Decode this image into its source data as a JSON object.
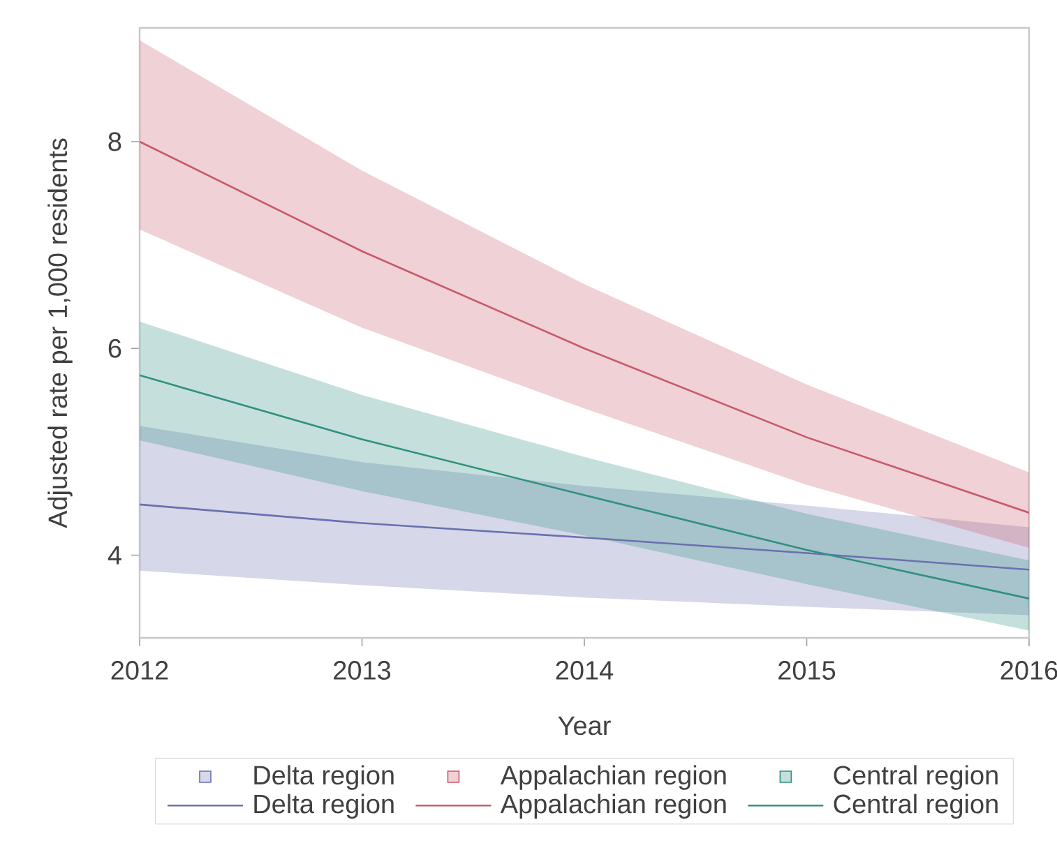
{
  "chart_data": {
    "type": "line",
    "xlabel": "Year",
    "ylabel": "Adjusted rate per 1,000 residents",
    "x": [
      2012,
      2013,
      2014,
      2015,
      2016
    ],
    "xlim": [
      2012,
      2016
    ],
    "xticks": [
      2012,
      2013,
      2014,
      2015,
      2016
    ],
    "ylim": [
      3.2,
      9.1
    ],
    "yticks": [
      4,
      6,
      8
    ],
    "legend": "bottom",
    "series": [
      {
        "name": "Delta region",
        "color": "#6a70b0",
        "values": [
          4.49,
          4.31,
          4.17,
          4.02,
          3.86
        ],
        "lower": [
          3.85,
          3.71,
          3.59,
          3.5,
          3.42
        ],
        "upper": [
          5.25,
          4.9,
          4.67,
          4.48,
          4.27
        ]
      },
      {
        "name": "Appalachian region",
        "color": "#c85a68",
        "values": [
          8.0,
          6.94,
          6.0,
          5.14,
          4.41
        ],
        "lower": [
          7.15,
          6.2,
          5.42,
          4.68,
          4.07
        ],
        "upper": [
          8.98,
          7.72,
          6.62,
          5.65,
          4.8
        ]
      },
      {
        "name": "Central region",
        "color": "#2f9080",
        "values": [
          5.74,
          5.12,
          4.58,
          4.05,
          3.58
        ],
        "lower": [
          5.11,
          4.62,
          4.19,
          3.72,
          3.27
        ],
        "upper": [
          6.26,
          5.55,
          4.95,
          4.4,
          3.95
        ]
      }
    ]
  }
}
